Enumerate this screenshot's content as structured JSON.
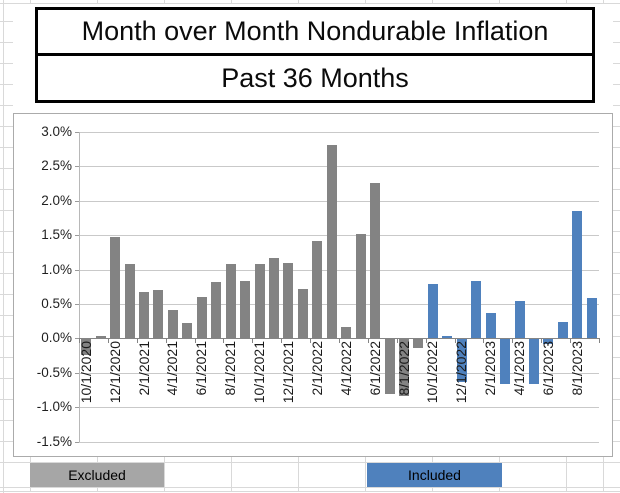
{
  "title": {
    "line1": "Month over Month Nondurable Inflation",
    "line2": "Past 36 Months"
  },
  "legend": {
    "excluded": "Excluded",
    "included": "Included"
  },
  "colors": {
    "excluded_bar": "#838383",
    "included_bar": "#4F81BD",
    "excluded_cell": "#A6A6A6",
    "included_cell": "#4F81BD",
    "gridline": "#c9c9c9",
    "axis": "#848484"
  },
  "chart_data": {
    "type": "bar",
    "title": "Month over Month Nondurable Inflation",
    "subtitle": "Past 36 Months",
    "xlabel": "",
    "ylabel": "",
    "ylim": [
      -1.5,
      3.0
    ],
    "grid": true,
    "legend_position": "below-chart",
    "y_ticks": [
      "3.0%",
      "2.5%",
      "2.0%",
      "1.5%",
      "1.0%",
      "0.5%",
      "0.0%",
      "-0.5%",
      "-1.0%",
      "-1.5%"
    ],
    "categories": [
      "10/1/2020",
      "11/1/2020",
      "12/1/2020",
      "1/1/2021",
      "2/1/2021",
      "3/1/2021",
      "4/1/2021",
      "5/1/2021",
      "6/1/2021",
      "7/1/2021",
      "8/1/2021",
      "9/1/2021",
      "10/1/2021",
      "11/1/2021",
      "12/1/2021",
      "1/1/2022",
      "2/1/2022",
      "3/1/2022",
      "4/1/2022",
      "5/1/2022",
      "6/1/2022",
      "7/1/2022",
      "8/1/2022",
      "9/1/2022",
      "10/1/2022",
      "11/1/2022",
      "12/1/2022",
      "1/1/2023",
      "2/1/2023",
      "3/1/2023",
      "4/1/2023",
      "5/1/2023",
      "6/1/2023",
      "7/1/2023",
      "8/1/2023",
      "9/1/2023"
    ],
    "values": [
      -0.23,
      0.04,
      1.48,
      1.08,
      0.67,
      0.7,
      0.41,
      0.23,
      0.6,
      0.82,
      1.08,
      0.84,
      1.08,
      1.17,
      1.1,
      0.72,
      1.41,
      2.81,
      0.17,
      1.52,
      2.26,
      -0.8,
      -0.83,
      -0.13,
      0.79,
      0.04,
      -0.62,
      0.84,
      0.37,
      -0.65,
      0.55,
      -0.65,
      -0.07,
      0.24,
      1.85,
      0.58
    ],
    "x_tick_labels": [
      "10/1/2020",
      "12/1/2020",
      "2/1/2021",
      "4/1/2021",
      "6/1/2021",
      "8/1/2021",
      "10/1/2021",
      "12/1/2021",
      "2/1/2022",
      "4/1/2022",
      "6/1/2022",
      "8/1/2022",
      "10/1/2022",
      "12/1/2022",
      "2/1/2023",
      "4/1/2023",
      "6/1/2023",
      "8/1/2023"
    ],
    "series": [
      {
        "name": "Excluded",
        "category_range": "10/1/2020 - 9/1/2022",
        "color": "#838383"
      },
      {
        "name": "Included",
        "category_range": "10/1/2022 - 9/1/2023",
        "color": "#4F81BD"
      }
    ],
    "included_from_index": 24
  }
}
